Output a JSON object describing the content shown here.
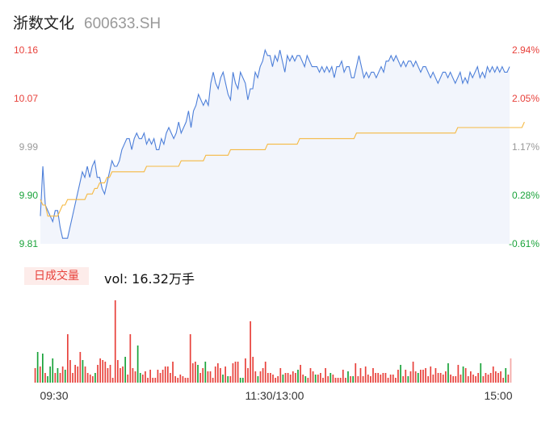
{
  "header": {
    "name": "浙数文化",
    "code": "600633.SH"
  },
  "volume_panel": {
    "tab_label": "日成交量",
    "vol_text": "vol: 16.32万手"
  },
  "colors": {
    "price_line": "#4d7fd9",
    "avg_line": "#f5b942",
    "area_fill": "#f2f5fc",
    "up": "#e8413b",
    "down": "#1aa33a",
    "axis_text": "#333333"
  },
  "chart_data": [
    {
      "type": "line",
      "title": "",
      "y_left_ticks": [
        "10.16",
        "10.07",
        "9.99",
        "9.90",
        "9.81"
      ],
      "y_right_ticks": [
        "2.94%",
        "2.05%",
        "1.17%",
        "0.28%",
        "-0.61%"
      ],
      "y_tick_colors": [
        "up",
        "up",
        "neutral",
        "down",
        "down"
      ],
      "ylim": [
        9.81,
        10.16
      ],
      "x_ticks": [
        "09:30",
        "11:30/13:00",
        "15:00"
      ],
      "series": [
        {
          "role": "price",
          "values": [
            9.86,
            9.95,
            9.88,
            9.87,
            9.86,
            9.85,
            9.87,
            9.87,
            9.84,
            9.82,
            9.82,
            9.82,
            9.84,
            9.86,
            9.88,
            9.9,
            9.92,
            9.94,
            9.93,
            9.95,
            9.93,
            9.95,
            9.96,
            9.93,
            9.93,
            9.91,
            9.9,
            9.92,
            9.94,
            9.96,
            9.95,
            9.95,
            9.96,
            9.98,
            9.99,
            10.0,
            10.0,
            9.98,
            10.0,
            10.01,
            10.0,
            10.0,
            10.01,
            9.99,
            10.0,
            9.99,
            10.0,
            9.98,
            9.98,
            10.0,
            9.99,
            10.01,
            10.02,
            10.01,
            10.0,
            10.01,
            10.03,
            10.01,
            10.02,
            10.03,
            10.05,
            10.02,
            10.05,
            10.06,
            10.08,
            10.07,
            10.06,
            10.07,
            10.06,
            10.1,
            10.12,
            10.1,
            10.09,
            10.11,
            10.12,
            10.1,
            10.08,
            10.07,
            10.12,
            10.1,
            10.09,
            10.12,
            10.11,
            10.1,
            10.07,
            10.09,
            10.09,
            10.12,
            10.11,
            10.13,
            10.14,
            10.16,
            10.15,
            10.15,
            10.13,
            10.15,
            10.14,
            10.16,
            10.14,
            10.12,
            10.15,
            10.14,
            10.15,
            10.14,
            10.15,
            10.15,
            10.14,
            10.13,
            10.15,
            10.14,
            10.13,
            10.13,
            10.13,
            10.12,
            10.13,
            10.12,
            10.13,
            10.12,
            10.13,
            10.11,
            10.13,
            10.13,
            10.14,
            10.12,
            10.13,
            10.13,
            10.11,
            10.11,
            10.13,
            10.15,
            10.13,
            10.11,
            10.12,
            10.11,
            10.12,
            10.12,
            10.11,
            10.12,
            10.13,
            10.12,
            10.14,
            10.14,
            10.15,
            10.14,
            10.15,
            10.14,
            10.13,
            10.14,
            10.13,
            10.14,
            10.14,
            10.13,
            10.14,
            10.13,
            10.12,
            10.13,
            10.13,
            10.12,
            10.11,
            10.12,
            10.11,
            10.1,
            10.11,
            10.12,
            10.12,
            10.11,
            10.12,
            10.11,
            10.1,
            10.11,
            10.12,
            10.1,
            10.11,
            10.1,
            10.12,
            10.11,
            10.12,
            10.13,
            10.11,
            10.12,
            10.11,
            10.13,
            10.12,
            10.13,
            10.12,
            10.13,
            10.12,
            10.13,
            10.12,
            10.12,
            10.13
          ]
        },
        {
          "role": "average",
          "values": [
            9.89,
            9.88,
            9.88,
            9.86,
            9.86,
            9.86,
            9.86,
            9.86,
            9.87,
            9.88,
            9.88,
            9.89,
            9.89,
            9.89,
            9.89,
            9.89,
            9.89,
            9.89,
            9.89,
            9.9,
            9.9,
            9.9,
            9.91,
            9.91,
            9.92,
            9.92,
            9.92,
            9.93,
            9.93,
            9.94,
            9.94,
            9.94,
            9.94,
            9.94,
            9.94,
            9.94,
            9.94,
            9.94,
            9.94,
            9.94,
            9.94,
            9.94,
            9.94,
            9.95,
            9.95,
            9.95,
            9.95,
            9.95,
            9.95,
            9.95,
            9.95,
            9.95,
            9.95,
            9.95,
            9.95,
            9.95,
            9.95,
            9.96,
            9.96,
            9.96,
            9.96,
            9.96,
            9.96,
            9.96,
            9.96,
            9.96,
            9.96,
            9.97,
            9.97,
            9.97,
            9.97,
            9.97,
            9.97,
            9.97,
            9.97,
            9.97,
            9.97,
            9.98,
            9.98,
            9.98,
            9.98,
            9.98,
            9.98,
            9.98,
            9.98,
            9.98,
            9.98,
            9.98,
            9.98,
            9.98,
            9.98,
            9.98,
            9.99,
            9.99,
            9.99,
            9.99,
            9.99,
            9.99,
            9.99,
            9.99,
            9.99,
            9.99,
            9.99,
            9.99,
            9.99,
            10.0,
            10.0,
            10.0,
            10.0,
            10.0,
            10.0,
            10.0,
            10.0,
            10.0,
            10.0,
            10.0,
            10.0,
            10.0,
            10.0,
            10.0,
            10.0,
            10.0,
            10.0,
            10.0,
            10.0,
            10.0,
            10.0,
            10.0,
            10.01,
            10.01,
            10.01,
            10.01,
            10.01,
            10.01,
            10.01,
            10.01,
            10.01,
            10.01,
            10.01,
            10.01,
            10.01,
            10.01,
            10.01,
            10.01,
            10.01,
            10.01,
            10.01,
            10.01,
            10.01,
            10.01,
            10.01,
            10.01,
            10.01,
            10.01,
            10.01,
            10.01,
            10.01,
            10.01,
            10.01,
            10.01,
            10.01,
            10.01,
            10.01,
            10.01,
            10.01,
            10.01,
            10.01,
            10.01,
            10.01,
            10.02,
            10.02,
            10.02,
            10.02,
            10.02,
            10.02,
            10.02,
            10.02,
            10.02,
            10.02,
            10.02,
            10.02,
            10.02,
            10.02,
            10.02,
            10.02,
            10.02,
            10.02,
            10.02,
            10.02,
            10.02,
            10.02,
            10.02,
            10.02,
            10.02,
            10.02,
            10.02,
            10.03
          ]
        }
      ]
    },
    {
      "type": "bar",
      "title": "",
      "ylim": [
        0,
        110
      ],
      "values": [
        18,
        38,
        20,
        36,
        12,
        8,
        20,
        30,
        12,
        18,
        12,
        20,
        16,
        60,
        28,
        12,
        22,
        20,
        38,
        28,
        20,
        12,
        10,
        8,
        12,
        22,
        30,
        28,
        26,
        18,
        22,
        6,
        102,
        28,
        18,
        20,
        32,
        10,
        60,
        18,
        14,
        46,
        12,
        10,
        14,
        6,
        16,
        6,
        6,
        16,
        12,
        16,
        20,
        20,
        12,
        26,
        8,
        6,
        10,
        8,
        6,
        6,
        60,
        24,
        26,
        22,
        12,
        18,
        26,
        14,
        14,
        6,
        20,
        24,
        18,
        10,
        20,
        8,
        8,
        24,
        26,
        26,
        6,
        6,
        30,
        18,
        76,
        32,
        14,
        8,
        14,
        18,
        26,
        12,
        12,
        10,
        6,
        8,
        18,
        10,
        12,
        12,
        10,
        14,
        12,
        16,
        22,
        10,
        8,
        6,
        18,
        14,
        10,
        10,
        12,
        6,
        18,
        8,
        12,
        10,
        6,
        6,
        6,
        16,
        6,
        14,
        8,
        8,
        24,
        8,
        18,
        8,
        20,
        10,
        8,
        18,
        12,
        12,
        10,
        12,
        12,
        6,
        10,
        10,
        6,
        16,
        22,
        8,
        16,
        8,
        14,
        26,
        14,
        12,
        16,
        16,
        18,
        8,
        20,
        10,
        18,
        12,
        12,
        10,
        14,
        24,
        10,
        8,
        8,
        22,
        10,
        20,
        18,
        8,
        14,
        10,
        8,
        12,
        24,
        8,
        12,
        10,
        12,
        20,
        14,
        12,
        14,
        6,
        18,
        10,
        30
      ],
      "up": [
        1,
        0,
        1,
        0,
        1,
        0,
        0,
        0,
        1,
        0,
        1,
        1,
        0,
        1,
        1,
        1,
        1,
        1,
        1,
        0,
        1,
        1,
        1,
        1,
        0,
        1,
        1,
        1,
        1,
        1,
        1,
        1,
        1,
        1,
        1,
        1,
        0,
        1,
        1,
        1,
        1,
        0,
        0,
        1,
        1,
        1,
        1,
        1,
        1,
        1,
        1,
        1,
        1,
        1,
        1,
        1,
        1,
        1,
        1,
        1,
        1,
        1,
        1,
        1,
        1,
        0,
        1,
        1,
        0,
        1,
        1,
        1,
        1,
        1,
        1,
        0,
        1,
        0,
        1,
        1,
        1,
        1,
        0,
        0,
        1,
        1,
        1,
        1,
        1,
        0,
        1,
        1,
        1,
        1,
        1,
        1,
        1,
        1,
        1,
        0,
        1,
        1,
        1,
        1,
        1,
        0,
        1,
        1,
        0,
        1,
        1,
        1,
        0,
        1,
        1,
        1,
        1,
        1,
        0,
        1,
        1,
        1,
        1,
        1,
        1,
        0,
        1,
        0,
        1,
        1,
        1,
        1,
        1,
        1,
        1,
        1,
        1,
        1,
        1,
        1,
        1,
        1,
        1,
        1,
        1,
        1,
        0,
        1,
        1,
        0,
        1,
        1,
        1,
        0,
        1,
        1,
        1,
        1,
        1,
        1,
        1,
        1,
        1,
        1,
        1,
        0,
        1,
        1,
        1,
        1,
        1,
        0,
        1,
        1,
        1,
        1,
        1,
        1,
        0,
        1,
        1,
        1,
        1,
        1,
        1,
        1,
        1,
        1,
        0,
        1,
        1
      ]
    }
  ]
}
